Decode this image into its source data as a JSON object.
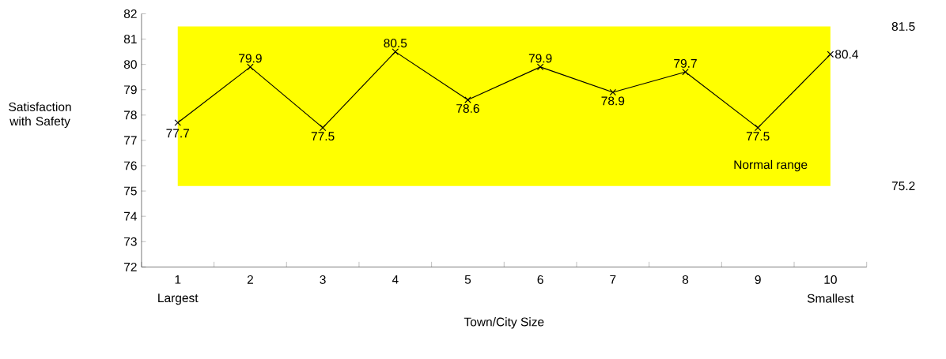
{
  "chart_data": {
    "type": "line",
    "xlabel": "Town/City Size",
    "ylabel": "Satisfaction with Safety",
    "categories": [
      "1",
      "2",
      "3",
      "4",
      "5",
      "6",
      "7",
      "8",
      "9",
      "10"
    ],
    "series": [
      {
        "color": "#000000",
        "values": [
          77.7,
          79.9,
          77.5,
          80.5,
          78.6,
          79.9,
          78.9,
          79.7,
          77.5,
          80.4
        ]
      }
    ],
    "ylim": [
      72,
      82
    ],
    "yticks": [
      72,
      73,
      74,
      75,
      76,
      77,
      78,
      79,
      80,
      81,
      82
    ],
    "bands": [
      {
        "axis": "y",
        "from": 75.2,
        "to": 81.5,
        "label": "Normal range",
        "color": "#ffff00"
      }
    ],
    "annotations": [
      "81.5",
      "75.2",
      "Largest",
      "Smallest"
    ],
    "data_labels": true,
    "marker": "cross",
    "line_style": "solid"
  }
}
